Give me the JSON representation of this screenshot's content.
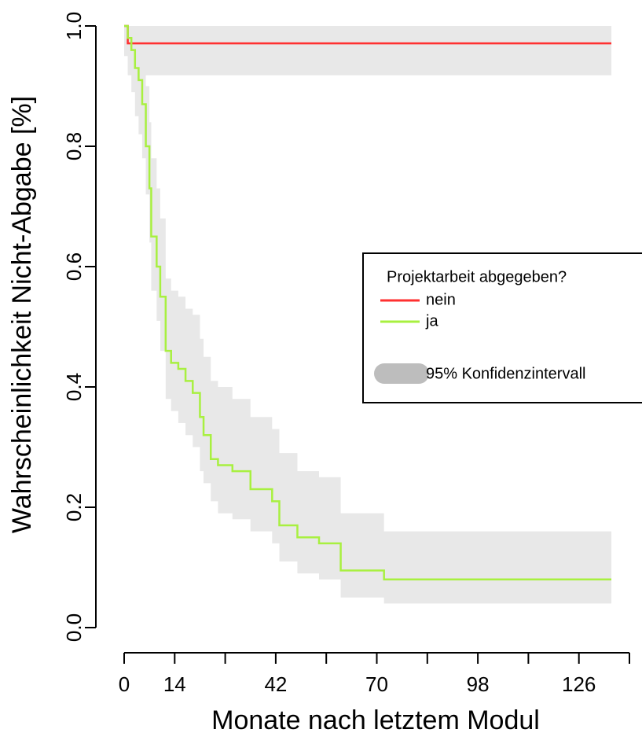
{
  "chart_data": {
    "type": "km",
    "ylabel": "Wahrscheinlichkeit Nicht-Abgabe [%]",
    "xlabel": "Monate nach letztem Modul",
    "xlim": [
      0,
      140
    ],
    "ylim": [
      0,
      1
    ],
    "xticks": [
      0,
      14,
      42,
      70,
      98,
      126
    ],
    "xminor_ticks": [
      28,
      56,
      84,
      112,
      140
    ],
    "yticks": [
      {
        "value": 0,
        "label": "0.0"
      },
      0.2,
      0.4,
      0.6,
      0.8,
      {
        "value": 1,
        "label": "1.0"
      }
    ],
    "legend_title": "Projektarbeit abgegeben?",
    "ci_label": "95% Konfidenzintervall",
    "ci_color": "#e8e8e8",
    "ci_legend_color": "#bdbdbd",
    "legend_position": "right",
    "series": [
      {
        "name": "nein",
        "color": "#ff3030",
        "x": [
          0,
          1,
          135
        ],
        "values": [
          1,
          0.971,
          0.971
        ],
        "lower": [
          1,
          0.918,
          0.918
        ],
        "upper": [
          1,
          1,
          1
        ]
      },
      {
        "name": "ja",
        "color": "#a8f040",
        "x": [
          0,
          1,
          2,
          3,
          4,
          5,
          6,
          7,
          7.5,
          9,
          10,
          11.5,
          13,
          15,
          17,
          19,
          21,
          22,
          24,
          26,
          30,
          35,
          41,
          43,
          48,
          54,
          60,
          72,
          135
        ],
        "values": [
          1,
          0.98,
          0.96,
          0.93,
          0.91,
          0.87,
          0.8,
          0.73,
          0.65,
          0.6,
          0.55,
          0.46,
          0.44,
          0.43,
          0.41,
          0.39,
          0.35,
          0.32,
          0.28,
          0.27,
          0.26,
          0.23,
          0.21,
          0.17,
          0.15,
          0.14,
          0.095,
          0.08,
          0.08
        ],
        "upper": [
          1,
          1,
          1,
          1,
          0.99,
          0.96,
          0.9,
          0.84,
          0.78,
          0.73,
          0.68,
          0.58,
          0.56,
          0.55,
          0.53,
          0.52,
          0.48,
          0.45,
          0.41,
          0.4,
          0.38,
          0.35,
          0.33,
          0.29,
          0.26,
          0.25,
          0.19,
          0.16,
          0.16
        ],
        "lower": [
          0.95,
          0.92,
          0.89,
          0.85,
          0.82,
          0.78,
          0.72,
          0.64,
          0.56,
          0.51,
          0.46,
          0.38,
          0.36,
          0.34,
          0.32,
          0.3,
          0.26,
          0.24,
          0.21,
          0.19,
          0.18,
          0.16,
          0.14,
          0.11,
          0.09,
          0.08,
          0.05,
          0.04,
          0.04
        ]
      }
    ]
  }
}
